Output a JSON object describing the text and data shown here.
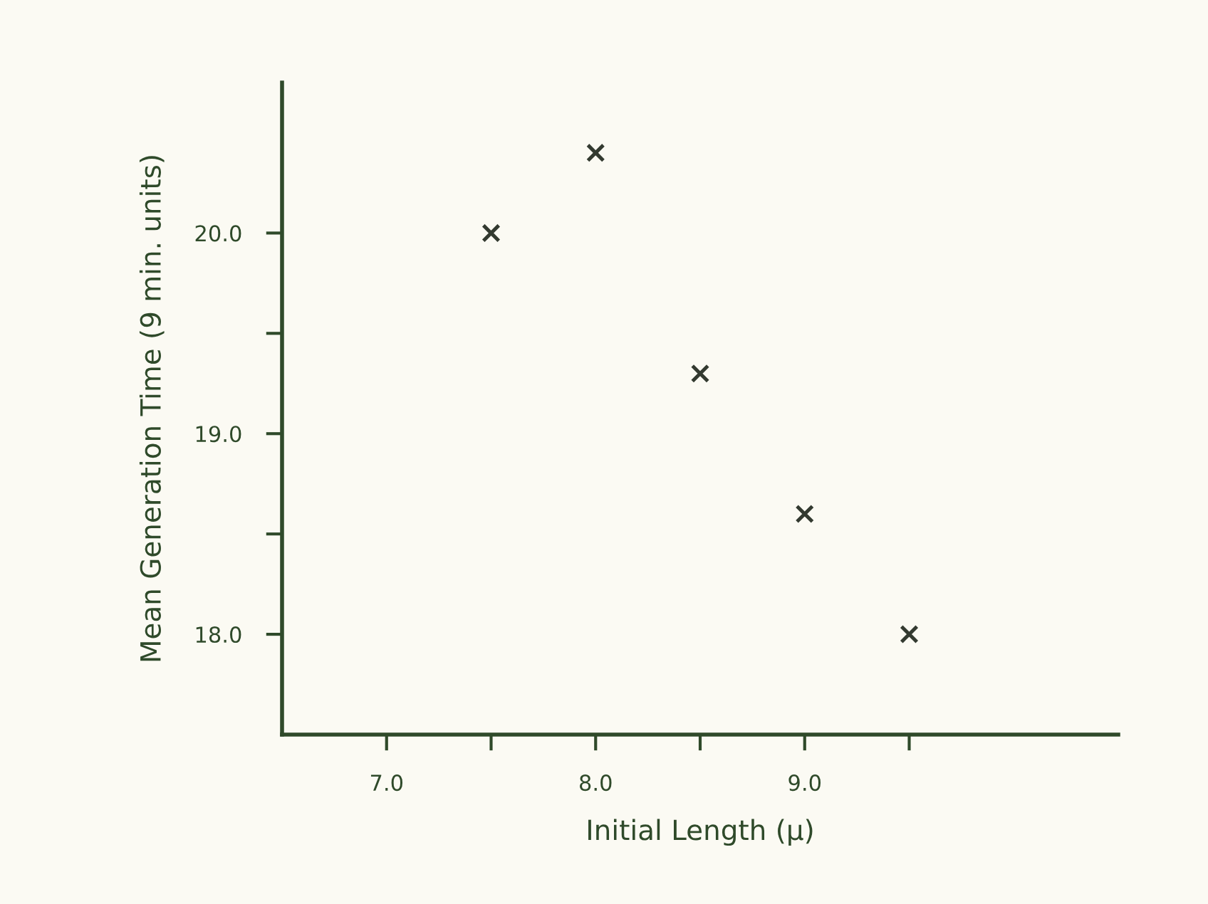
{
  "chart_data": {
    "type": "scatter",
    "xlabel": "Initial Length (μ)",
    "ylabel": "Mean Generation Time (9 min. units)",
    "x": [
      7.5,
      8.0,
      8.5,
      9.0,
      9.5
    ],
    "series": [
      {
        "color": "#333a30",
        "values": [
          20.0,
          20.4,
          19.3,
          18.6,
          18.0
        ]
      }
    ],
    "xlim": [
      6.5,
      10.5
    ],
    "ylim": [
      17.5,
      20.75
    ],
    "xticks": [
      {
        "value": 7.0,
        "label": "7.0"
      },
      {
        "value": 7.5,
        "label": null
      },
      {
        "value": 8.0,
        "label": "8.0"
      },
      {
        "value": 8.5,
        "label": null
      },
      {
        "value": 9.0,
        "label": "9.0"
      },
      {
        "value": 9.5,
        "label": null
      }
    ],
    "yticks": [
      {
        "value": 18.0,
        "label": "18.0"
      },
      {
        "value": 18.5,
        "label": null
      },
      {
        "value": 19.0,
        "label": "19.0"
      },
      {
        "value": 19.5,
        "label": null
      },
      {
        "value": 20.0,
        "label": "20.0"
      }
    ],
    "marker": "cross",
    "grid": false,
    "legend": false
  }
}
